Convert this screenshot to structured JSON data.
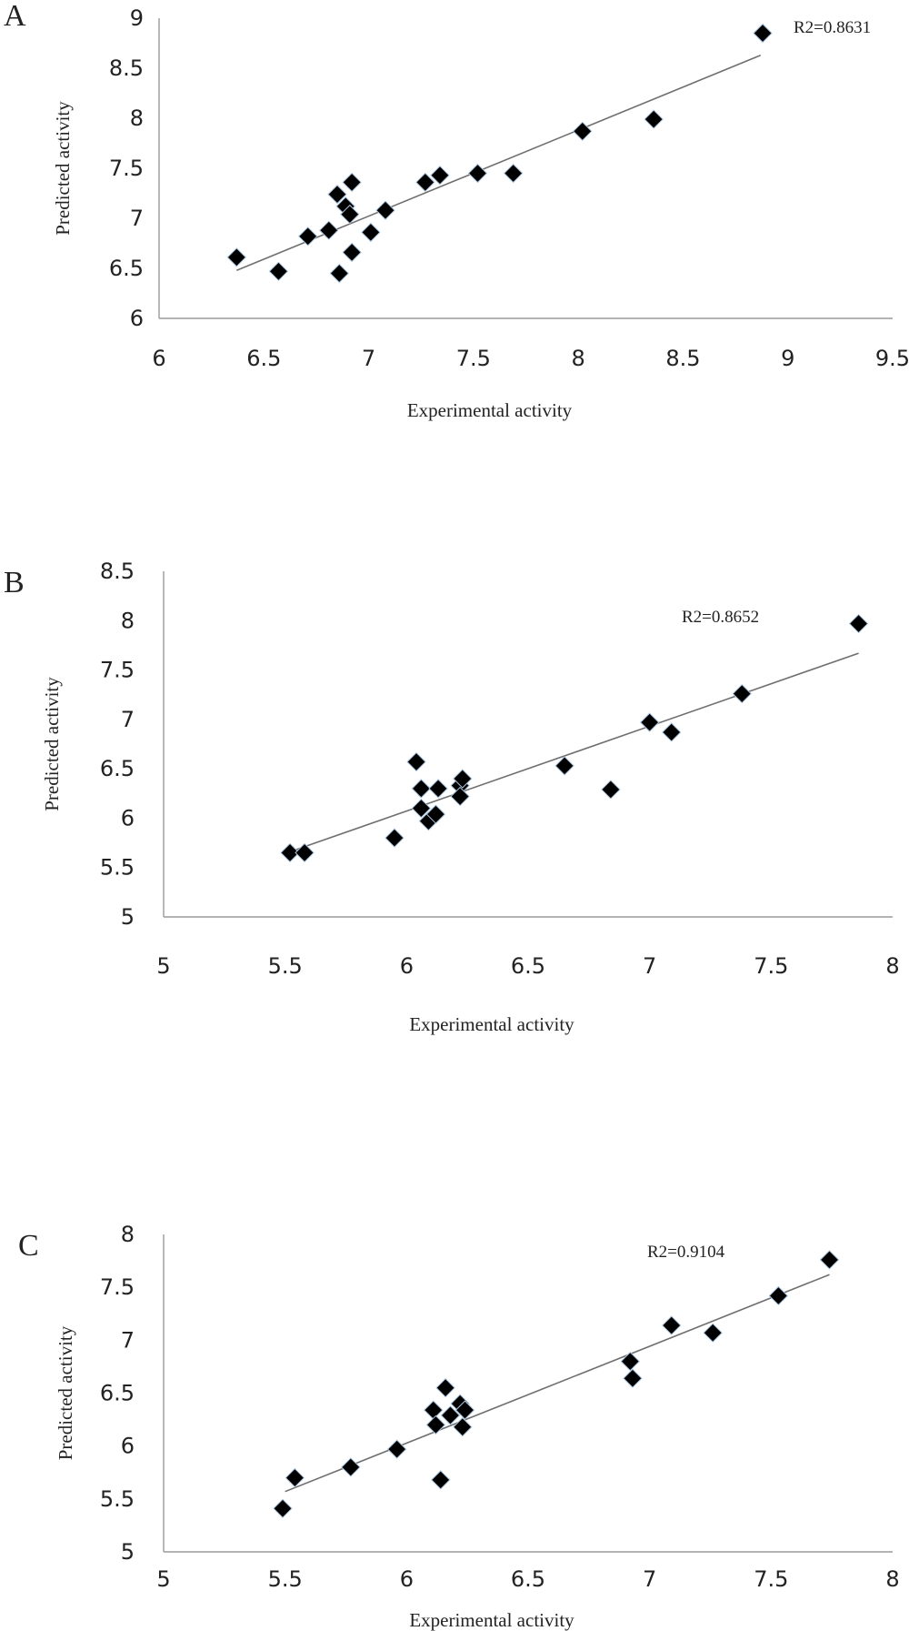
{
  "chart_data": [
    {
      "type": "scatter",
      "panel_label": "A",
      "xlabel": "Experimental activity",
      "ylabel": "Predicted activity",
      "annotation": "R2=0.8631",
      "xlim": [
        6,
        9.5
      ],
      "ylim": [
        6,
        9
      ],
      "xticks": [
        "6",
        "6.5",
        "7",
        "7.5",
        "8",
        "8.5",
        "9",
        "9.5"
      ],
      "yticks": [
        "6",
        "6.5",
        "7",
        "7.5",
        "8",
        "8.5",
        "9"
      ],
      "trendline": [
        [
          6.37,
          6.48
        ],
        [
          8.87,
          8.63
        ]
      ],
      "points": [
        [
          6.37,
          6.61
        ],
        [
          6.57,
          6.47
        ],
        [
          6.71,
          6.82
        ],
        [
          6.81,
          6.88
        ],
        [
          6.85,
          7.24
        ],
        [
          6.89,
          7.12
        ],
        [
          6.91,
          7.04
        ],
        [
          6.92,
          7.36
        ],
        [
          6.92,
          6.66
        ],
        [
          6.86,
          6.45
        ],
        [
          7.01,
          6.86
        ],
        [
          7.08,
          7.08
        ],
        [
          7.27,
          7.36
        ],
        [
          7.34,
          7.43
        ],
        [
          7.52,
          7.45
        ],
        [
          7.69,
          7.45
        ],
        [
          8.02,
          7.87
        ],
        [
          8.36,
          7.99
        ],
        [
          8.88,
          8.85
        ]
      ]
    },
    {
      "type": "scatter",
      "panel_label": "B",
      "xlabel": "Experimental activity",
      "ylabel": "Predicted activity",
      "annotation": "R2=0.8652",
      "xlim": [
        5,
        8
      ],
      "ylim": [
        5,
        8.5
      ],
      "xticks": [
        "5",
        "5.5",
        "6",
        "6.5",
        "7",
        "7.5",
        "8"
      ],
      "yticks": [
        "5",
        "5.5",
        "6",
        "6.5",
        "7",
        "7.5",
        "8",
        "8.5"
      ],
      "trendline": [
        [
          5.52,
          5.66
        ],
        [
          7.86,
          7.67
        ]
      ],
      "points": [
        [
          5.52,
          5.65
        ],
        [
          5.58,
          5.65
        ],
        [
          5.95,
          5.8
        ],
        [
          6.04,
          6.57
        ],
        [
          6.06,
          6.3
        ],
        [
          6.06,
          6.1
        ],
        [
          6.09,
          5.97
        ],
        [
          6.12,
          6.04
        ],
        [
          6.13,
          6.3
        ],
        [
          6.22,
          6.33
        ],
        [
          6.22,
          6.22
        ],
        [
          6.23,
          6.4
        ],
        [
          6.65,
          6.53
        ],
        [
          6.84,
          6.29
        ],
        [
          7.0,
          6.97
        ],
        [
          7.09,
          6.87
        ],
        [
          7.38,
          7.26
        ],
        [
          7.86,
          7.97
        ]
      ]
    },
    {
      "type": "scatter",
      "panel_label": "C",
      "xlabel": "Experimental activity",
      "ylabel": "Predicted activity",
      "annotation": "R2=0.9104",
      "xlim": [
        5,
        8
      ],
      "ylim": [
        5,
        8
      ],
      "xticks": [
        "5",
        "5.5",
        "6",
        "6.5",
        "7",
        "7.5",
        "8"
      ],
      "yticks": [
        "5",
        "5.5",
        "6",
        "6.5",
        "7",
        "7.5",
        "8"
      ],
      "trendline": [
        [
          5.5,
          5.57
        ],
        [
          7.74,
          7.62
        ]
      ],
      "points": [
        [
          5.49,
          5.41
        ],
        [
          5.54,
          5.7
        ],
        [
          5.77,
          5.8
        ],
        [
          5.96,
          5.97
        ],
        [
          6.11,
          6.34
        ],
        [
          6.12,
          6.2
        ],
        [
          6.14,
          5.68
        ],
        [
          6.16,
          6.55
        ],
        [
          6.18,
          6.29
        ],
        [
          6.22,
          6.4
        ],
        [
          6.23,
          6.18
        ],
        [
          6.24,
          6.34
        ],
        [
          6.92,
          6.8
        ],
        [
          6.93,
          6.64
        ],
        [
          7.09,
          7.14
        ],
        [
          7.26,
          7.07
        ],
        [
          7.53,
          7.42
        ],
        [
          7.74,
          7.76
        ]
      ]
    }
  ]
}
